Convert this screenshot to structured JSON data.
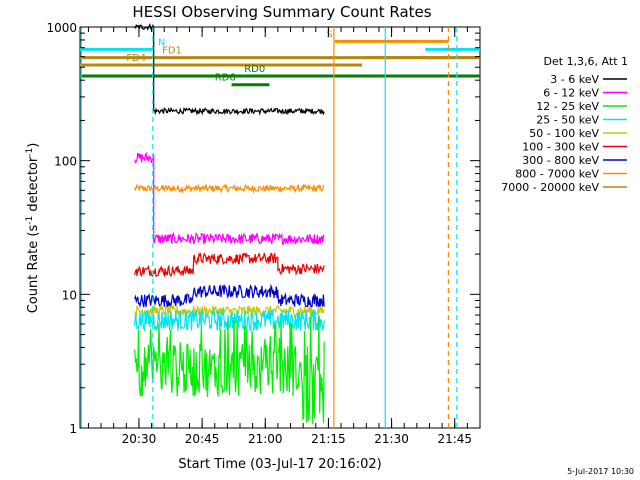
{
  "chart_data": {
    "type": "line",
    "title": "HESSI Observing Summary Count Rates",
    "xlabel": "Start Time (03-Jul-17 20:16:02)",
    "ylabel_main": "Count Rate (s",
    "ylabel_sup1": "-1",
    "ylabel_mid": " detector",
    "ylabel_sup2": "-1",
    "ylabel_end": ")",
    "y_scale": "log",
    "ylim": [
      1,
      1000
    ],
    "xlim_minutes": [
      0,
      95
    ],
    "x_ticks": [
      {
        "t": 14,
        "label": "20:30"
      },
      {
        "t": 29,
        "label": "20:45"
      },
      {
        "t": 44,
        "label": "21:00"
      },
      {
        "t": 59,
        "label": "21:15"
      },
      {
        "t": 74,
        "label": "21:30"
      },
      {
        "t": 89,
        "label": "21:45"
      }
    ],
    "y_ticks": [
      {
        "v": 1,
        "label": "1"
      },
      {
        "v": 10,
        "label": "10"
      },
      {
        "v": 100,
        "label": "100"
      },
      {
        "v": 1000,
        "label": "1000"
      }
    ],
    "legend_header": "Det 1,3,6, Att 1",
    "series": [
      {
        "name": "3 - 6 keV",
        "color": "#000000",
        "start": 13,
        "end": 58,
        "segments": [
          [
            13,
            17.5,
            1000
          ],
          [
            17.5,
            58,
            235
          ]
        ],
        "jitter": 0.02
      },
      {
        "name": "6 - 12 keV",
        "color": "#ff00ff",
        "start": 13,
        "end": 58,
        "segments": [
          [
            13,
            17.5,
            105
          ],
          [
            17.5,
            58,
            26
          ]
        ],
        "jitter": 0.04
      },
      {
        "name": "12 - 25 keV",
        "color": "#00ee00",
        "start": 13,
        "end": 58,
        "segments": [
          [
            13,
            58,
            2.7
          ]
        ],
        "jitter": 0.2
      },
      {
        "name": "25 - 50 keV",
        "color": "#00e5ee",
        "start": 13,
        "end": 58,
        "segments": [
          [
            13,
            58,
            6.4
          ]
        ],
        "jitter": 0.08
      },
      {
        "name": "50 - 100 keV",
        "color": "#c8c800",
        "start": 13,
        "end": 58,
        "segments": [
          [
            13,
            58,
            7.5
          ]
        ],
        "jitter": 0.04
      },
      {
        "name": "100 - 300 keV",
        "color": "#ee0000",
        "start": 13,
        "end": 58,
        "segments": [
          [
            13,
            27,
            15
          ],
          [
            27,
            47,
            18.5
          ],
          [
            47,
            58,
            15.5
          ]
        ],
        "jitter": 0.04
      },
      {
        "name": "300 - 800 keV",
        "color": "#0000cd",
        "start": 13,
        "end": 58,
        "segments": [
          [
            13,
            27,
            9
          ],
          [
            27,
            47,
            10.5
          ],
          [
            47,
            58,
            9
          ]
        ],
        "jitter": 0.05
      },
      {
        "name": "800 - 7000 keV",
        "color": "#ff8c00",
        "start": 13,
        "end": 58,
        "segments": [
          [
            13,
            58,
            62
          ]
        ],
        "jitter": 0.025
      },
      {
        "name": "7000 - 20000 keV",
        "color": "#b8860b",
        "start": 13,
        "end": 58,
        "segments": [],
        "jitter": 0
      }
    ],
    "flags": [
      {
        "label": "N",
        "color": "#00e5ee",
        "level": 680,
        "x1": 0,
        "x2": 17.5,
        "label_t": 18.5
      },
      {
        "label": "",
        "color": "#00e5ee",
        "level": 680,
        "x1": 82,
        "x2": 95,
        "label_t": null
      },
      {
        "label": "FD1",
        "color": "#b8860b",
        "level": 590,
        "x1": 0,
        "x2": 95,
        "label_t": 19.5
      },
      {
        "label": "FD4",
        "color": "#b8860b",
        "level": 520,
        "x1": 0,
        "x2": 67,
        "label_t": 11
      },
      {
        "label": "",
        "color": "#b8860b",
        "level": 590,
        "x1": 67.5,
        "x2": 95,
        "label_t": null
      },
      {
        "label": "S",
        "color": "#ff8c00",
        "level": 780,
        "x1": 60.5,
        "x2": 87.5,
        "label_t": 58.5
      },
      {
        "label": "RD0",
        "color": "#008000",
        "level": 430,
        "x1": 0,
        "x2": 95,
        "label_t": 39
      },
      {
        "label": "RD6",
        "color": "#008000",
        "level": 370,
        "x1": 36,
        "x2": 45,
        "label_t": 32
      }
    ],
    "vlines": [
      {
        "t": 0.3,
        "color": "#00e5ee",
        "dash": false
      },
      {
        "t": 17.3,
        "color": "#00e5ee",
        "dash": true
      },
      {
        "t": 60.3,
        "color": "#ff8c00",
        "dash": false
      },
      {
        "t": 72.5,
        "color": "#00e5ee",
        "dash": false
      },
      {
        "t": 87.5,
        "color": "#ff8c00",
        "dash": true
      },
      {
        "t": 89.5,
        "color": "#00e5ee",
        "dash": true
      }
    ],
    "grid": false,
    "legend_position": "right"
  },
  "footer": {
    "date_stamp": "5-Jul-2017 10:30"
  }
}
